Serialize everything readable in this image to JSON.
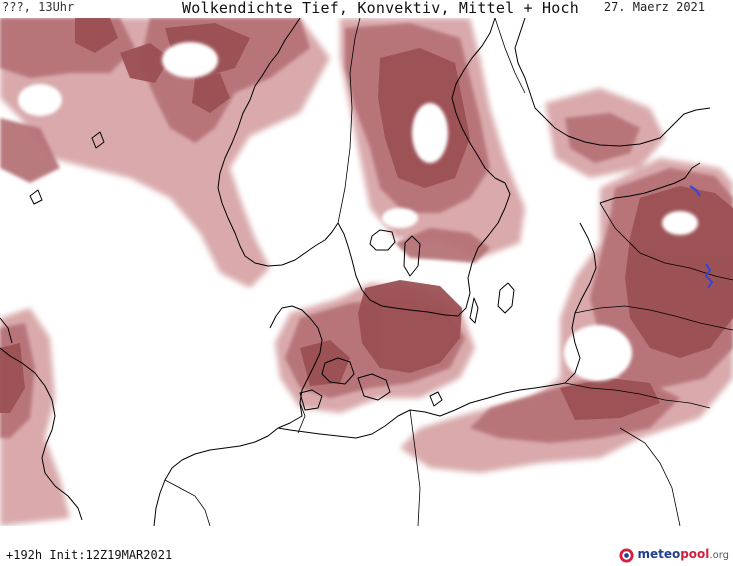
{
  "header": {
    "left": "???, 13Uhr",
    "title": "Wolkendichte  Tief, Konvektiv, Mittel + Hoch",
    "date": "27. Maerz 2021"
  },
  "footer": {
    "run": "+192h  Init:12Z19MAR2021",
    "logo_a": "meteo",
    "logo_b": "pool",
    "logo_c": ".org"
  },
  "colors": {
    "cloud_dark": "#9b5054",
    "cloud_mid": "#b67378",
    "cloud_light": "#d7a5a7",
    "coast": "#000000",
    "river": "#3344dd",
    "background": "#ffffff"
  },
  "icons": {
    "logo": "meteopool-logo-icon"
  }
}
